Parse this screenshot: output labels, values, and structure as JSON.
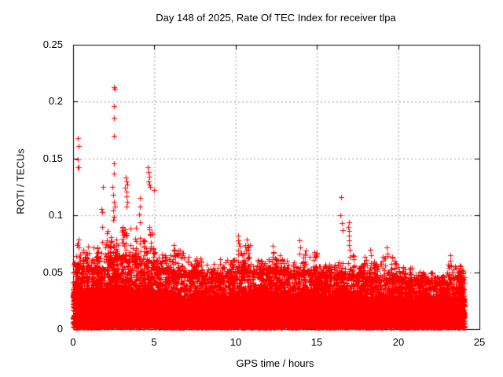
{
  "title": "Day 148 of 2025, Rate Of TEC Index for receiver tlpa",
  "x_axis": {
    "label": "GPS time / hours",
    "tick_labels": [
      "0",
      "5",
      "10",
      "15",
      "20",
      "25"
    ],
    "tick_values": [
      0,
      5,
      10,
      15,
      20,
      25
    ],
    "range": [
      0,
      25
    ]
  },
  "y_axis": {
    "label": "ROTI / TECUs",
    "tick_labels": [
      "0",
      "0.05",
      "0.1",
      "0.15",
      "0.2",
      "0.25"
    ],
    "tick_values": [
      0,
      0.05,
      0.1,
      0.15,
      0.2,
      0.25
    ],
    "range": [
      0,
      0.25
    ]
  },
  "colors": {
    "marker": "#ff0000",
    "grid": "#9b9b9b",
    "frame": "#000000",
    "text": "#000000",
    "background": "#ffffff"
  },
  "chart_data": {
    "type": "scatter",
    "title": "Day 148 of 2025, Rate Of TEC Index for receiver tlpa",
    "xlabel": "GPS time / hours",
    "ylabel": "ROTI / TECUs",
    "xlim": [
      0,
      25
    ],
    "ylim": [
      0,
      0.25
    ],
    "grid": true,
    "legend": "none",
    "marker": "plus",
    "marker_size_px": 7,
    "time_span_hours": [
      0,
      24.07
    ],
    "description": "Very dense scatter of rate-of-TEC-index values sampled over 24 hours; nearly solid band below ~0.03 TECU with tree-like spike clusters; strongest activity hours 0-5 (max 0.213 near hour 2.5), isolated spike 0.116 near hour 16.5, moderate streaks near hours 10, 14, 17, 19, 23.",
    "envelope_hourly": {
      "hours": [
        0,
        1,
        2,
        3,
        4,
        5,
        6,
        7,
        8,
        9,
        10,
        11,
        12,
        13,
        14,
        15,
        16,
        17,
        18,
        19,
        20,
        21,
        22,
        23
      ],
      "dense_top": [
        0.034,
        0.032,
        0.036,
        0.036,
        0.034,
        0.03,
        0.028,
        0.028,
        0.027,
        0.028,
        0.03,
        0.03,
        0.03,
        0.03,
        0.03,
        0.028,
        0.028,
        0.028,
        0.027,
        0.027,
        0.026,
        0.026,
        0.026,
        0.027
      ],
      "scatter_top": [
        0.058,
        0.056,
        0.068,
        0.066,
        0.062,
        0.056,
        0.052,
        0.052,
        0.048,
        0.05,
        0.056,
        0.054,
        0.055,
        0.052,
        0.053,
        0.05,
        0.05,
        0.05,
        0.048,
        0.048,
        0.046,
        0.045,
        0.045,
        0.048
      ],
      "peak": [
        0.075,
        0.08,
        0.09,
        0.1,
        0.09,
        0.068,
        0.072,
        0.066,
        0.058,
        0.062,
        0.075,
        0.062,
        0.068,
        0.062,
        0.07,
        0.058,
        0.06,
        0.068,
        0.064,
        0.065,
        0.055,
        0.052,
        0.05,
        0.058
      ]
    },
    "outliers": [
      [
        0.3,
        0.168
      ],
      [
        0.32,
        0.161
      ],
      [
        0.31,
        0.149
      ],
      [
        0.3,
        0.142
      ],
      [
        0.34,
        0.142
      ],
      [
        0.32,
        0.079
      ],
      [
        0.3,
        0.075
      ],
      [
        0.33,
        0.072
      ],
      [
        1.75,
        0.106
      ],
      [
        1.8,
        0.103
      ],
      [
        1.77,
        0.09
      ],
      [
        1.85,
        0.125
      ],
      [
        2.5,
        0.213
      ],
      [
        2.54,
        0.211
      ],
      [
        2.5,
        0.196
      ],
      [
        2.52,
        0.186
      ],
      [
        2.5,
        0.17
      ],
      [
        2.5,
        0.146
      ],
      [
        2.53,
        0.137
      ],
      [
        2.4,
        0.125
      ],
      [
        2.45,
        0.118
      ],
      [
        2.5,
        0.112
      ],
      [
        2.55,
        0.108
      ],
      [
        2.48,
        0.104
      ],
      [
        2.52,
        0.099
      ],
      [
        2.46,
        0.096
      ],
      [
        3.25,
        0.133
      ],
      [
        3.3,
        0.13
      ],
      [
        3.35,
        0.127
      ],
      [
        3.2,
        0.124
      ],
      [
        3.3,
        0.121
      ],
      [
        3.28,
        0.117
      ],
      [
        3.32,
        0.112
      ],
      [
        3.3,
        0.108
      ],
      [
        4.1,
        0.115
      ],
      [
        4.12,
        0.108
      ],
      [
        4.08,
        0.101
      ],
      [
        4.1,
        0.094
      ],
      [
        4.6,
        0.142
      ],
      [
        4.65,
        0.138
      ],
      [
        4.7,
        0.134
      ],
      [
        4.62,
        0.13
      ],
      [
        4.68,
        0.127
      ],
      [
        4.72,
        0.125
      ],
      [
        5.0,
        0.122
      ],
      [
        6.2,
        0.074
      ],
      [
        6.2,
        0.069
      ],
      [
        6.22,
        0.065
      ],
      [
        10.15,
        0.082
      ],
      [
        10.15,
        0.078
      ],
      [
        10.18,
        0.075
      ],
      [
        10.7,
        0.079
      ],
      [
        10.72,
        0.072
      ],
      [
        12.3,
        0.073
      ],
      [
        12.32,
        0.068
      ],
      [
        13.95,
        0.078
      ],
      [
        13.97,
        0.072
      ],
      [
        13.95,
        0.066
      ],
      [
        16.5,
        0.116
      ],
      [
        16.45,
        0.1
      ],
      [
        16.55,
        0.093
      ],
      [
        16.6,
        0.087
      ],
      [
        16.95,
        0.094
      ],
      [
        16.93,
        0.09
      ],
      [
        16.97,
        0.086
      ],
      [
        16.95,
        0.082
      ],
      [
        16.98,
        0.078
      ],
      [
        16.95,
        0.074
      ],
      [
        17.0,
        0.07
      ],
      [
        18.3,
        0.07
      ],
      [
        18.32,
        0.065
      ],
      [
        19.3,
        0.072
      ],
      [
        19.32,
        0.066
      ],
      [
        23.2,
        0.065
      ],
      [
        23.22,
        0.06
      ],
      [
        23.18,
        0.055
      ],
      [
        23.8,
        0.056
      ]
    ]
  }
}
